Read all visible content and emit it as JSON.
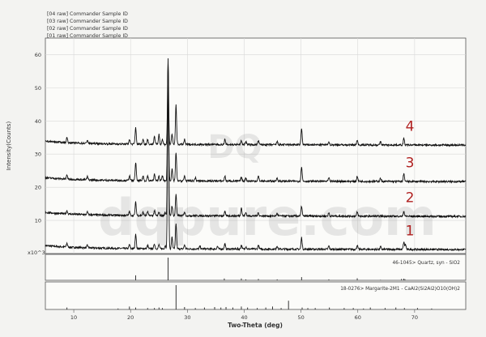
{
  "legend": [
    "[04 raw] Commander Sample ID",
    "[03 raw] Commander Sample ID",
    "[02 raw] Commander Sample ID",
    "[01 raw] Commander Sample ID"
  ],
  "watermark": {
    "top": "DQ",
    "bottom": "dqpure.com"
  },
  "reference_panels": [
    {
      "label": "46-1045> Quartz, syn - SiO2"
    },
    {
      "label": "18-0276> Margarite-2M1 - CaAl2(Si2Al2)O10(OH)2"
    }
  ],
  "chart_data": {
    "type": "line",
    "title": "",
    "xlabel": "Two-Theta (deg)",
    "ylabel": "Intensity(Counts)",
    "y_multiplier_label": "x10^3",
    "xlim": [
      5,
      79
    ],
    "ylim": [
      0,
      65
    ],
    "x_ticks": [
      10,
      20,
      30,
      40,
      50,
      60,
      70
    ],
    "y_ticks": [
      10,
      20,
      30,
      40,
      50,
      60
    ],
    "grid": true,
    "legend_position": "top-left",
    "series": [
      {
        "name": "1",
        "baseline": 1.5,
        "line_color": "#111111",
        "label_color": "#b02020",
        "peaks": [
          [
            8.8,
            1.2
          ],
          [
            12.4,
            0.8
          ],
          [
            19.8,
            1.2
          ],
          [
            20.9,
            4.5
          ],
          [
            23.0,
            1.0
          ],
          [
            24.2,
            1.5
          ],
          [
            25.0,
            1.2
          ],
          [
            26.1,
            1.0
          ],
          [
            26.6,
            57.5
          ],
          [
            27.3,
            3.5
          ],
          [
            28.0,
            7.5
          ],
          [
            29.5,
            1.2
          ],
          [
            32.2,
            0.8
          ],
          [
            35.3,
            0.8
          ],
          [
            36.6,
            1.5
          ],
          [
            39.5,
            1.2
          ],
          [
            40.3,
            0.8
          ],
          [
            42.5,
            1.2
          ],
          [
            45.8,
            1.0
          ],
          [
            50.1,
            3.5
          ],
          [
            54.9,
            1.0
          ],
          [
            59.9,
            1.2
          ],
          [
            64.0,
            0.8
          ],
          [
            68.1,
            2.2
          ],
          [
            68.4,
            1.5
          ]
        ]
      },
      {
        "name": "2",
        "baseline": 11.5,
        "line_color": "#111111",
        "label_color": "#b02020",
        "peaks": [
          [
            8.8,
            1.0
          ],
          [
            12.4,
            0.8
          ],
          [
            19.8,
            1.2
          ],
          [
            20.9,
            4.0
          ],
          [
            22.2,
            1.0
          ],
          [
            23.0,
            1.2
          ],
          [
            24.2,
            1.5
          ],
          [
            25.0,
            1.0
          ],
          [
            26.1,
            1.0
          ],
          [
            26.6,
            45.0
          ],
          [
            27.3,
            3.0
          ],
          [
            28.0,
            6.5
          ],
          [
            29.5,
            1.2
          ],
          [
            36.6,
            1.2
          ],
          [
            39.5,
            2.5
          ],
          [
            40.3,
            1.0
          ],
          [
            42.5,
            1.0
          ],
          [
            45.8,
            0.8
          ],
          [
            50.1,
            3.0
          ],
          [
            54.9,
            1.0
          ],
          [
            59.9,
            1.2
          ],
          [
            68.1,
            1.5
          ]
        ]
      },
      {
        "name": "3",
        "baseline": 22.0,
        "line_color": "#111111",
        "label_color": "#b02020",
        "peaks": [
          [
            8.8,
            1.2
          ],
          [
            12.4,
            1.0
          ],
          [
            19.8,
            1.5
          ],
          [
            20.9,
            5.5
          ],
          [
            22.2,
            1.5
          ],
          [
            23.0,
            1.5
          ],
          [
            24.2,
            2.0
          ],
          [
            25.0,
            1.5
          ],
          [
            25.6,
            1.5
          ],
          [
            26.6,
            34.0
          ],
          [
            27.3,
            3.5
          ],
          [
            28.0,
            8.5
          ],
          [
            29.5,
            1.5
          ],
          [
            31.4,
            1.0
          ],
          [
            36.6,
            1.5
          ],
          [
            39.5,
            1.2
          ],
          [
            40.3,
            1.0
          ],
          [
            42.5,
            1.5
          ],
          [
            45.8,
            1.0
          ],
          [
            50.1,
            4.5
          ],
          [
            54.9,
            1.0
          ],
          [
            59.9,
            1.5
          ],
          [
            64.0,
            1.0
          ],
          [
            68.1,
            2.5
          ]
        ]
      },
      {
        "name": "4",
        "baseline": 33.0,
        "line_color": "#111111",
        "label_color": "#b02020",
        "peaks": [
          [
            8.8,
            1.5
          ],
          [
            12.4,
            1.0
          ],
          [
            19.8,
            1.5
          ],
          [
            20.9,
            5.0
          ],
          [
            22.2,
            1.5
          ],
          [
            23.0,
            1.5
          ],
          [
            24.2,
            2.5
          ],
          [
            25.0,
            3.0
          ],
          [
            25.6,
            1.5
          ],
          [
            26.6,
            25.0
          ],
          [
            27.3,
            3.0
          ],
          [
            28.0,
            12.0
          ],
          [
            29.5,
            1.5
          ],
          [
            36.6,
            1.5
          ],
          [
            39.5,
            1.2
          ],
          [
            40.3,
            1.0
          ],
          [
            42.5,
            1.2
          ],
          [
            45.8,
            1.0
          ],
          [
            50.1,
            5.0
          ],
          [
            54.9,
            1.0
          ],
          [
            59.9,
            1.5
          ],
          [
            64.0,
            1.0
          ],
          [
            68.1,
            2.0
          ]
        ]
      }
    ],
    "reference_sticks": [
      {
        "panel": 0,
        "lines": [
          [
            20.9,
            22
          ],
          [
            26.6,
            100
          ],
          [
            36.5,
            8
          ],
          [
            39.5,
            8
          ],
          [
            40.3,
            4
          ],
          [
            42.5,
            6
          ],
          [
            45.8,
            4
          ],
          [
            50.1,
            14
          ],
          [
            54.9,
            4
          ],
          [
            59.9,
            9
          ],
          [
            64.0,
            2
          ],
          [
            67.7,
            6
          ],
          [
            68.1,
            7
          ],
          [
            68.3,
            5
          ]
        ]
      },
      {
        "panel": 1,
        "lines": [
          [
            8.8,
            8
          ],
          [
            17.8,
            4
          ],
          [
            19.8,
            12
          ],
          [
            20.9,
            8
          ],
          [
            23.0,
            6
          ],
          [
            24.2,
            6
          ],
          [
            25.0,
            8
          ],
          [
            25.6,
            6
          ],
          [
            28.0,
            100
          ],
          [
            29.5,
            10
          ],
          [
            31.4,
            6
          ],
          [
            33.0,
            8
          ],
          [
            34.8,
            10
          ],
          [
            35.9,
            8
          ],
          [
            36.8,
            10
          ],
          [
            38.0,
            8
          ],
          [
            39.5,
            12
          ],
          [
            40.6,
            8
          ],
          [
            42.3,
            6
          ],
          [
            43.8,
            8
          ],
          [
            45.0,
            12
          ],
          [
            46.5,
            6
          ],
          [
            47.8,
            36
          ],
          [
            50.2,
            8
          ],
          [
            51.2,
            6
          ],
          [
            52.5,
            6
          ],
          [
            55.0,
            8
          ],
          [
            57.6,
            6
          ],
          [
            59.2,
            6
          ],
          [
            61.0,
            4
          ],
          [
            62.2,
            8
          ],
          [
            64.8,
            6
          ],
          [
            66.7,
            8
          ],
          [
            68.2,
            6
          ],
          [
            70.5,
            6
          ],
          [
            73.0,
            4
          ]
        ]
      }
    ]
  }
}
